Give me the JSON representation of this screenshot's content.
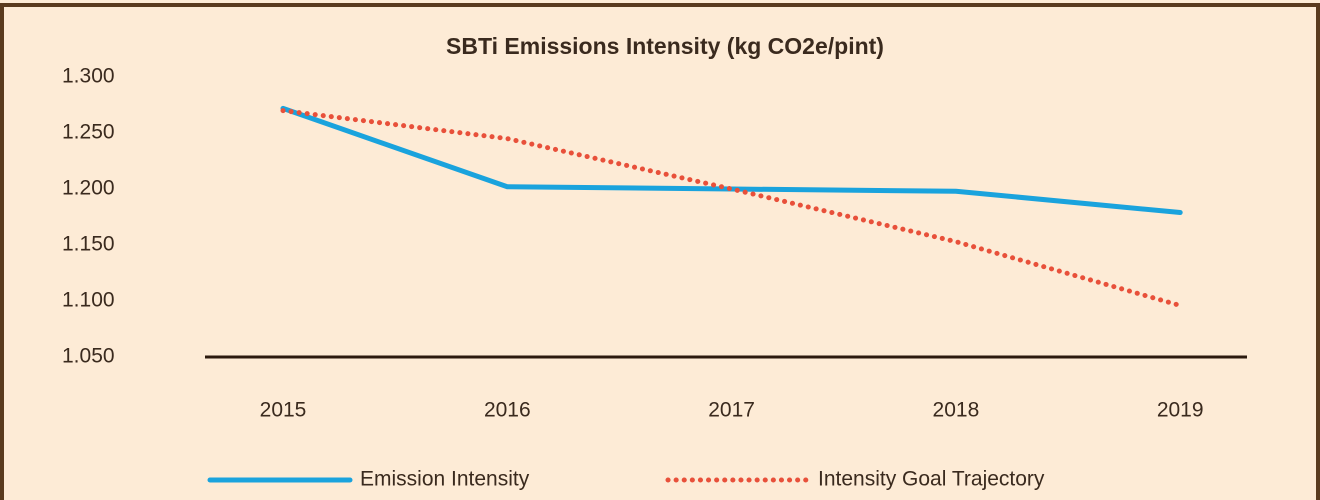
{
  "chart_data": {
    "type": "line",
    "title": "SBTi  Emissions Intensity (kg CO2e/pint)",
    "categories": [
      "2015",
      "2016",
      "2017",
      "2018",
      "2019"
    ],
    "series": [
      {
        "name": "Emission Intensity",
        "color": "#1aa3dd",
        "style": "solid",
        "values": [
          1.272,
          1.202,
          1.2,
          1.198,
          1.179
        ]
      },
      {
        "name": "Intensity Goal Trajectory",
        "color": "#e8503a",
        "style": "dotted",
        "values": [
          1.27,
          1.245,
          1.2,
          1.153,
          1.096
        ]
      }
    ],
    "ylim": [
      1.05,
      1.3
    ],
    "yticks": [
      {
        "value": 1.05,
        "label": "1.050"
      },
      {
        "value": 1.1,
        "label": "1.100"
      },
      {
        "value": 1.15,
        "label": "1.150"
      },
      {
        "value": 1.2,
        "label": "1.200"
      },
      {
        "value": 1.25,
        "label": "1.250"
      },
      {
        "value": 1.3,
        "label": "1.300"
      }
    ],
    "grid": false,
    "legend": "bottom"
  }
}
